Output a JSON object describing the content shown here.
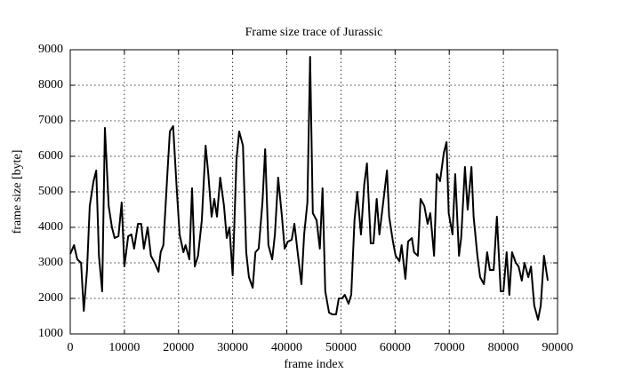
{
  "chart_data": {
    "type": "line",
    "title": "Frame size trace of Jurassic",
    "x_label": "frame index",
    "y_label": "frame size [byte]",
    "color": "#000000",
    "grid": true,
    "xlim": [
      0,
      90000
    ],
    "xticks": [
      0,
      10000,
      20000,
      30000,
      40000,
      50000,
      60000,
      70000,
      80000,
      90000
    ],
    "ylim": [
      1000,
      9000
    ],
    "yticks": [
      1000,
      2000,
      3000,
      4000,
      5000,
      6000,
      7000,
      8000,
      9000
    ],
    "x": [
      0,
      700,
      1300,
      2000,
      2500,
      3100,
      3600,
      4300,
      4800,
      5300,
      5900,
      6400,
      7100,
      7700,
      8200,
      8900,
      9500,
      10000,
      10700,
      11300,
      11800,
      12500,
      13100,
      13600,
      14300,
      14900,
      15600,
      16300,
      16700,
      17200,
      17900,
      18400,
      19000,
      19700,
      20200,
      20900,
      21300,
      22000,
      22500,
      23000,
      23600,
      24300,
      25000,
      25500,
      26100,
      26600,
      27100,
      27700,
      28400,
      28900,
      29400,
      30000,
      30700,
      31200,
      31900,
      32500,
      33000,
      33700,
      34200,
      34800,
      35500,
      36000,
      36600,
      37300,
      37800,
      38400,
      39100,
      39600,
      40200,
      40900,
      41400,
      42000,
      42700,
      43200,
      43800,
      44300,
      44800,
      45500,
      46100,
      46600,
      47100,
      47800,
      48400,
      49100,
      49600,
      50200,
      50700,
      51400,
      51900,
      52500,
      53000,
      53700,
      54300,
      54800,
      55500,
      56000,
      56600,
      57100,
      57800,
      58500,
      58900,
      59600,
      60100,
      60800,
      61200,
      61900,
      62400,
      63100,
      63500,
      64200,
      64700,
      65400,
      66000,
      66500,
      67200,
      67700,
      68300,
      69000,
      69500,
      69900,
      70600,
      71100,
      71800,
      72200,
      72900,
      73400,
      74100,
      74500,
      75200,
      75700,
      76400,
      77000,
      77500,
      78200,
      78800,
      79500,
      80000,
      80600,
      81100,
      81600,
      82300,
      82800,
      83400,
      83900,
      84600,
      85100,
      85700,
      86400,
      86900,
      87500,
      88200
    ],
    "values": [
      3250,
      3500,
      3100,
      3000,
      1650,
      2800,
      4600,
      5300,
      5600,
      3200,
      2200,
      6800,
      4600,
      4000,
      3700,
      3750,
      4700,
      2900,
      3750,
      3800,
      3400,
      4100,
      4100,
      3400,
      4000,
      3200,
      3000,
      2750,
      3300,
      3500,
      5400,
      6700,
      6850,
      5000,
      3800,
      3300,
      3500,
      3100,
      5100,
      2900,
      3200,
      4200,
      6300,
      5500,
      4300,
      4800,
      4300,
      5400,
      4600,
      3700,
      4000,
      2650,
      5900,
      6700,
      6300,
      3300,
      2600,
      2300,
      3300,
      3400,
      4700,
      6200,
      3500,
      3100,
      3800,
      5400,
      4300,
      3400,
      3600,
      3650,
      4100,
      3300,
      2400,
      3800,
      4700,
      8800,
      4400,
      4200,
      3400,
      5100,
      2200,
      1600,
      1550,
      1550,
      2000,
      2000,
      2100,
      1850,
      2100,
      4200,
      5000,
      3800,
      5200,
      5800,
      3550,
      3550,
      4800,
      3800,
      4700,
      5600,
      4300,
      3600,
      3200,
      3050,
      3500,
      2550,
      3600,
      3700,
      3300,
      3200,
      4800,
      4600,
      4100,
      4400,
      3200,
      5500,
      5300,
      6100,
      6400,
      4400,
      3800,
      5500,
      3200,
      3700,
      5700,
      4500,
      5700,
      4300,
      3200,
      2600,
      2400,
      3300,
      2800,
      2800,
      4300,
      2200,
      2200,
      3300,
      2100,
      3300,
      3000,
      2900,
      2500,
      3000,
      2600,
      2900,
      1800,
      1400,
      1800,
      3200,
      2500
    ]
  }
}
